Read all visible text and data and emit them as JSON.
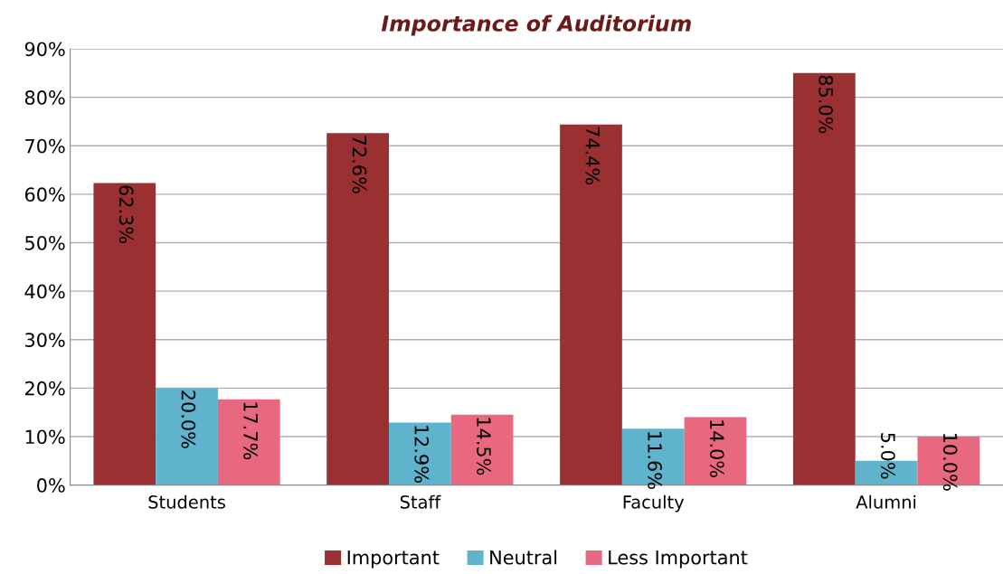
{
  "chart_data": {
    "type": "bar",
    "title": "Importance of Auditorium",
    "categories": [
      "Students",
      "Staff",
      "Faculty",
      "Alumni"
    ],
    "series": [
      {
        "name": "Important",
        "color": "#9b3032",
        "values": [
          62.3,
          72.6,
          74.4,
          85.0
        ],
        "value_labels": [
          "62.3%",
          "72.6%",
          "74.4%",
          "85.0%"
        ]
      },
      {
        "name": "Neutral",
        "color": "#5fb3cc",
        "values": [
          20.0,
          12.9,
          11.6,
          5.0
        ],
        "value_labels": [
          "20.0%",
          "12.9%",
          "11.6%",
          "5.0%"
        ]
      },
      {
        "name": "Less Important",
        "color": "#e8697f",
        "values": [
          17.7,
          14.5,
          14.0,
          10.0
        ],
        "value_labels": [
          "17.7%",
          "14.5%",
          "14.0%",
          "10.0%"
        ]
      }
    ],
    "ylim": [
      0,
      90
    ],
    "yticks": [
      {
        "value": 0,
        "label": "0%"
      },
      {
        "value": 10,
        "label": "10%"
      },
      {
        "value": 20,
        "label": "20%"
      },
      {
        "value": 30,
        "label": "30%"
      },
      {
        "value": 40,
        "label": "40%"
      },
      {
        "value": 50,
        "label": "50%"
      },
      {
        "value": 60,
        "label": "60%"
      },
      {
        "value": 70,
        "label": "70%"
      },
      {
        "value": 80,
        "label": "80%"
      },
      {
        "value": 90,
        "label": "90%"
      }
    ],
    "grid": "y",
    "legend": "bottom"
  }
}
